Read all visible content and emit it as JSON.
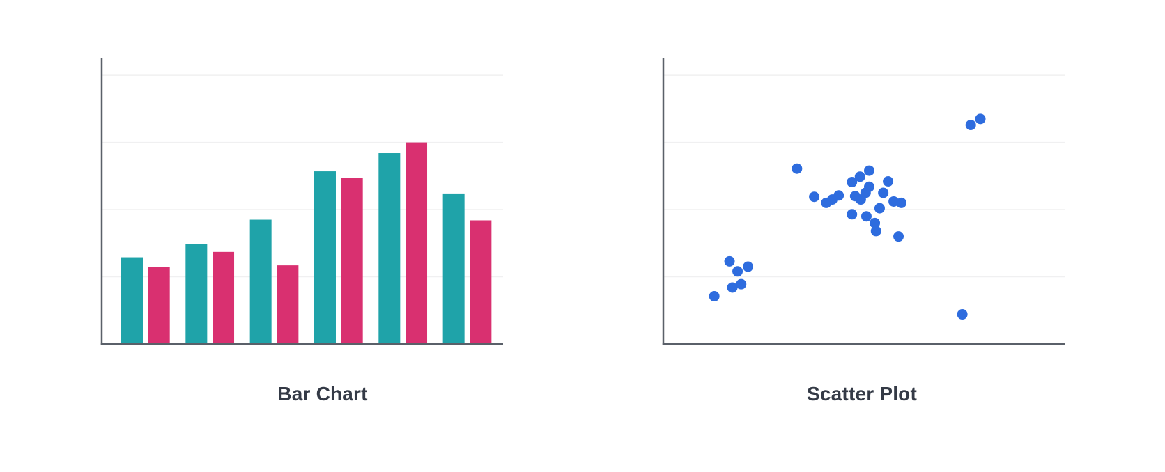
{
  "colors": {
    "background": "#FFFFFF",
    "axis": "#5A6069",
    "gridline": "#F0F0F1",
    "caption_text": "#343A46",
    "teal_series": "#1FA3A9",
    "pink_series": "#D93070",
    "scatter_points": "#2E6CDE"
  },
  "chart_data": [
    {
      "type": "bar",
      "title": "Bar Chart",
      "xlabel": "",
      "ylabel": "",
      "ylim": [
        0,
        42.5
      ],
      "y_gridlines": [
        10,
        20,
        30,
        40
      ],
      "grid": true,
      "legend": "none",
      "tick_labels_visible": false,
      "series": [
        {
          "name": "teal-series",
          "color": "#1FA3A9",
          "values": [
            12.9,
            14.9,
            18.5,
            25.7,
            28.4,
            22.4
          ]
        },
        {
          "name": "pink-series",
          "color": "#D93070",
          "values": [
            11.5,
            13.7,
            11.7,
            24.7,
            30.0,
            18.4
          ]
        }
      ]
    },
    {
      "type": "scatter",
      "title": "Scatter Plot",
      "xlabel": "",
      "ylabel": "",
      "xlim": [
        0,
        10
      ],
      "ylim": [
        0,
        42.5
      ],
      "y_gridlines": [
        10,
        20,
        30,
        40
      ],
      "grid": true,
      "legend": "none",
      "tick_labels_visible": false,
      "color": "#2E6CDE",
      "marker_radius_px": 7.5,
      "points": [
        [
          1.27,
          7.1
        ],
        [
          1.65,
          12.3
        ],
        [
          1.72,
          8.4
        ],
        [
          1.85,
          10.8
        ],
        [
          1.94,
          8.9
        ],
        [
          2.11,
          11.5
        ],
        [
          3.33,
          26.1
        ],
        [
          3.76,
          21.9
        ],
        [
          4.06,
          21.0
        ],
        [
          4.21,
          21.5
        ],
        [
          4.37,
          22.1
        ],
        [
          4.7,
          24.1
        ],
        [
          4.9,
          24.9
        ],
        [
          5.13,
          25.8
        ],
        [
          4.78,
          22.0
        ],
        [
          4.92,
          21.5
        ],
        [
          5.04,
          22.5
        ],
        [
          5.13,
          23.4
        ],
        [
          5.6,
          24.2
        ],
        [
          5.48,
          22.5
        ],
        [
          5.74,
          21.2
        ],
        [
          5.93,
          21.0
        ],
        [
          4.7,
          19.3
        ],
        [
          5.06,
          19.0
        ],
        [
          5.39,
          20.2
        ],
        [
          5.27,
          18.0
        ],
        [
          5.3,
          16.8
        ],
        [
          5.86,
          16.0
        ],
        [
          7.66,
          32.6
        ],
        [
          7.9,
          33.5
        ],
        [
          7.45,
          4.4
        ]
      ]
    }
  ]
}
